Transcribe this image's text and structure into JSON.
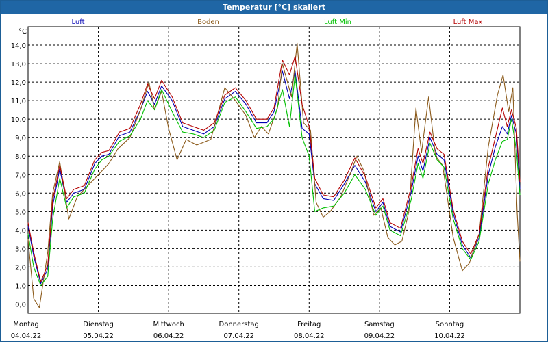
{
  "window": {
    "title": "Temperatur [°C] skaliert"
  },
  "chart_data": {
    "type": "line",
    "title": "Temperatur [°C] skaliert",
    "ylabel": "°C",
    "ylim": [
      -0.5,
      15.0
    ],
    "yticks": [
      0.0,
      1.0,
      2.0,
      3.0,
      4.0,
      5.0,
      6.0,
      7.0,
      8.0,
      9.0,
      10.0,
      11.0,
      12.0,
      13.0,
      14.0
    ],
    "ytick_labels": [
      "0,0",
      "1,0",
      "2,0",
      "3,0",
      "4,0",
      "5,0",
      "6,0",
      "7,0",
      "8,0",
      "9,0",
      "10,0",
      "11,0",
      "12,0",
      "13,0",
      "14,0"
    ],
    "xlim": [
      0,
      7.0
    ],
    "x_ticks": [
      {
        "x": 0,
        "day": "Montag",
        "date": "04.04.22"
      },
      {
        "x": 1,
        "day": "Dienstag",
        "date": "05.04.22"
      },
      {
        "x": 2,
        "day": "Mittwoch",
        "date": "06.04.22"
      },
      {
        "x": 3,
        "day": "Donnerstag",
        "date": "07.04.22"
      },
      {
        "x": 4,
        "day": "Freitag",
        "date": "08.04.22"
      },
      {
        "x": 5,
        "day": "Samstag",
        "date": "09.04.22"
      },
      {
        "x": 6,
        "day": "Sonntag",
        "date": "10.04.22"
      }
    ],
    "grid": true,
    "series": [
      {
        "name": "Luft",
        "color": "#0000b4",
        "points": [
          [
            0,
            4.2
          ],
          [
            0.08,
            2.6
          ],
          [
            0.18,
            1.1
          ],
          [
            0.28,
            1.9
          ],
          [
            0.35,
            5.3
          ],
          [
            0.45,
            7.3
          ],
          [
            0.55,
            5.5
          ],
          [
            0.65,
            6.0
          ],
          [
            0.8,
            6.2
          ],
          [
            0.95,
            7.6
          ],
          [
            1.05,
            8.0
          ],
          [
            1.15,
            8.1
          ],
          [
            1.3,
            9.1
          ],
          [
            1.45,
            9.3
          ],
          [
            1.6,
            10.5
          ],
          [
            1.7,
            11.5
          ],
          [
            1.8,
            10.8
          ],
          [
            1.9,
            11.8
          ],
          [
            2.05,
            11.0
          ],
          [
            2.2,
            9.6
          ],
          [
            2.35,
            9.4
          ],
          [
            2.5,
            9.2
          ],
          [
            2.65,
            9.6
          ],
          [
            2.8,
            11.1
          ],
          [
            2.95,
            11.5
          ],
          [
            3.1,
            10.8
          ],
          [
            3.25,
            9.8
          ],
          [
            3.4,
            9.8
          ],
          [
            3.5,
            10.4
          ],
          [
            3.62,
            12.6
          ],
          [
            3.72,
            11.1
          ],
          [
            3.8,
            12.6
          ],
          [
            3.9,
            9.5
          ],
          [
            4.0,
            9.2
          ],
          [
            4.08,
            6.5
          ],
          [
            4.2,
            5.7
          ],
          [
            4.35,
            5.6
          ],
          [
            4.5,
            6.5
          ],
          [
            4.65,
            7.5
          ],
          [
            4.8,
            6.6
          ],
          [
            4.95,
            5.0
          ],
          [
            5.05,
            5.5
          ],
          [
            5.15,
            4.2
          ],
          [
            5.3,
            3.9
          ],
          [
            5.45,
            6.0
          ],
          [
            5.55,
            8.0
          ],
          [
            5.62,
            7.2
          ],
          [
            5.72,
            9.0
          ],
          [
            5.82,
            8.1
          ],
          [
            5.92,
            7.8
          ],
          [
            6.05,
            4.9
          ],
          [
            6.18,
            3.2
          ],
          [
            6.3,
            2.5
          ],
          [
            6.42,
            3.6
          ],
          [
            6.55,
            7.0
          ],
          [
            6.65,
            8.5
          ],
          [
            6.75,
            9.6
          ],
          [
            6.82,
            9.2
          ],
          [
            6.88,
            10.2
          ],
          [
            6.95,
            9.2
          ],
          [
            7.0,
            6.2
          ]
        ]
      },
      {
        "name": "Boden",
        "color": "#8b5a1a",
        "points": [
          [
            0,
            3.5
          ],
          [
            0.08,
            0.3
          ],
          [
            0.16,
            -0.2
          ],
          [
            0.28,
            2.8
          ],
          [
            0.35,
            6.0
          ],
          [
            0.45,
            7.7
          ],
          [
            0.58,
            4.6
          ],
          [
            0.7,
            5.8
          ],
          [
            0.85,
            6.4
          ],
          [
            0.95,
            6.8
          ],
          [
            1.05,
            7.2
          ],
          [
            1.15,
            7.6
          ],
          [
            1.28,
            8.4
          ],
          [
            1.45,
            9.0
          ],
          [
            1.6,
            10.5
          ],
          [
            1.72,
            12.0
          ],
          [
            1.8,
            10.5
          ],
          [
            1.9,
            11.5
          ],
          [
            2.0,
            9.5
          ],
          [
            2.12,
            7.8
          ],
          [
            2.25,
            8.9
          ],
          [
            2.4,
            8.6
          ],
          [
            2.6,
            8.9
          ],
          [
            2.8,
            11.7
          ],
          [
            2.95,
            11.0
          ],
          [
            3.1,
            10.2
          ],
          [
            3.22,
            9.0
          ],
          [
            3.32,
            9.6
          ],
          [
            3.42,
            9.2
          ],
          [
            3.55,
            10.6
          ],
          [
            3.62,
            13.0
          ],
          [
            3.75,
            11.2
          ],
          [
            3.83,
            14.1
          ],
          [
            3.92,
            9.8
          ],
          [
            4.02,
            9.4
          ],
          [
            4.1,
            5.5
          ],
          [
            4.2,
            4.7
          ],
          [
            4.3,
            5.0
          ],
          [
            4.45,
            5.8
          ],
          [
            4.58,
            7.0
          ],
          [
            4.68,
            8.0
          ],
          [
            4.78,
            7.2
          ],
          [
            4.92,
            4.8
          ],
          [
            5.02,
            5.2
          ],
          [
            5.12,
            3.6
          ],
          [
            5.22,
            3.2
          ],
          [
            5.32,
            3.4
          ],
          [
            5.42,
            5.0
          ],
          [
            5.52,
            10.6
          ],
          [
            5.6,
            8.2
          ],
          [
            5.7,
            11.2
          ],
          [
            5.8,
            8.0
          ],
          [
            5.9,
            7.5
          ],
          [
            6.05,
            3.6
          ],
          [
            6.18,
            1.8
          ],
          [
            6.28,
            2.2
          ],
          [
            6.42,
            3.8
          ],
          [
            6.55,
            8.5
          ],
          [
            6.68,
            11.3
          ],
          [
            6.76,
            12.4
          ],
          [
            6.84,
            10.4
          ],
          [
            6.9,
            11.7
          ],
          [
            6.96,
            5.0
          ],
          [
            7.0,
            2.3
          ]
        ]
      },
      {
        "name": "Luft Min",
        "color": "#00c000",
        "points": [
          [
            0,
            3.8
          ],
          [
            0.08,
            2.0
          ],
          [
            0.18,
            1.0
          ],
          [
            0.28,
            1.5
          ],
          [
            0.35,
            4.6
          ],
          [
            0.45,
            6.8
          ],
          [
            0.55,
            5.2
          ],
          [
            0.65,
            5.8
          ],
          [
            0.8,
            6.0
          ],
          [
            0.95,
            7.3
          ],
          [
            1.05,
            7.8
          ],
          [
            1.15,
            8.0
          ],
          [
            1.3,
            8.8
          ],
          [
            1.45,
            9.1
          ],
          [
            1.6,
            10.0
          ],
          [
            1.7,
            11.0
          ],
          [
            1.8,
            10.5
          ],
          [
            1.9,
            11.6
          ],
          [
            2.05,
            10.4
          ],
          [
            2.2,
            9.3
          ],
          [
            2.35,
            9.2
          ],
          [
            2.5,
            9.0
          ],
          [
            2.65,
            9.4
          ],
          [
            2.8,
            10.9
          ],
          [
            2.95,
            11.2
          ],
          [
            3.1,
            10.4
          ],
          [
            3.25,
            9.5
          ],
          [
            3.4,
            9.6
          ],
          [
            3.5,
            10.0
          ],
          [
            3.62,
            11.6
          ],
          [
            3.72,
            9.6
          ],
          [
            3.8,
            12.4
          ],
          [
            3.9,
            9.0
          ],
          [
            4.0,
            8.0
          ],
          [
            4.08,
            5.0
          ],
          [
            4.2,
            5.2
          ],
          [
            4.35,
            5.3
          ],
          [
            4.5,
            6.0
          ],
          [
            4.65,
            7.0
          ],
          [
            4.8,
            6.2
          ],
          [
            4.95,
            4.8
          ],
          [
            5.05,
            5.3
          ],
          [
            5.15,
            4.0
          ],
          [
            5.3,
            3.7
          ],
          [
            5.45,
            5.6
          ],
          [
            5.55,
            7.6
          ],
          [
            5.62,
            6.8
          ],
          [
            5.72,
            8.7
          ],
          [
            5.82,
            7.8
          ],
          [
            5.92,
            7.4
          ],
          [
            6.05,
            4.6
          ],
          [
            6.18,
            3.0
          ],
          [
            6.3,
            2.4
          ],
          [
            6.42,
            3.4
          ],
          [
            6.55,
            6.5
          ],
          [
            6.65,
            7.8
          ],
          [
            6.75,
            8.8
          ],
          [
            6.82,
            8.9
          ],
          [
            6.88,
            10.0
          ],
          [
            6.95,
            8.3
          ],
          [
            7.0,
            5.9
          ]
        ]
      },
      {
        "name": "Luft Max",
        "color": "#b40000",
        "points": [
          [
            0,
            4.4
          ],
          [
            0.08,
            2.8
          ],
          [
            0.18,
            1.2
          ],
          [
            0.28,
            2.1
          ],
          [
            0.35,
            5.6
          ],
          [
            0.45,
            7.5
          ],
          [
            0.55,
            5.7
          ],
          [
            0.65,
            6.2
          ],
          [
            0.8,
            6.4
          ],
          [
            0.95,
            7.8
          ],
          [
            1.05,
            8.2
          ],
          [
            1.15,
            8.3
          ],
          [
            1.3,
            9.3
          ],
          [
            1.45,
            9.5
          ],
          [
            1.6,
            10.8
          ],
          [
            1.7,
            11.9
          ],
          [
            1.8,
            11.1
          ],
          [
            1.9,
            12.1
          ],
          [
            2.05,
            11.2
          ],
          [
            2.2,
            9.8
          ],
          [
            2.35,
            9.6
          ],
          [
            2.5,
            9.4
          ],
          [
            2.65,
            9.8
          ],
          [
            2.8,
            11.3
          ],
          [
            2.95,
            11.7
          ],
          [
            3.1,
            11.0
          ],
          [
            3.25,
            10.0
          ],
          [
            3.4,
            10.0
          ],
          [
            3.5,
            10.6
          ],
          [
            3.62,
            13.2
          ],
          [
            3.72,
            12.4
          ],
          [
            3.8,
            13.4
          ],
          [
            3.9,
            10.8
          ],
          [
            4.0,
            9.6
          ],
          [
            4.08,
            6.8
          ],
          [
            4.2,
            5.9
          ],
          [
            4.35,
            5.8
          ],
          [
            4.5,
            6.7
          ],
          [
            4.65,
            7.9
          ],
          [
            4.8,
            6.9
          ],
          [
            4.95,
            5.2
          ],
          [
            5.05,
            5.7
          ],
          [
            5.15,
            4.4
          ],
          [
            5.3,
            4.1
          ],
          [
            5.45,
            6.3
          ],
          [
            5.55,
            8.4
          ],
          [
            5.62,
            7.6
          ],
          [
            5.72,
            9.3
          ],
          [
            5.82,
            8.4
          ],
          [
            5.92,
            8.1
          ],
          [
            6.05,
            5.1
          ],
          [
            6.18,
            3.4
          ],
          [
            6.3,
            2.7
          ],
          [
            6.42,
            3.8
          ],
          [
            6.55,
            7.4
          ],
          [
            6.65,
            9.0
          ],
          [
            6.75,
            10.6
          ],
          [
            6.82,
            9.6
          ],
          [
            6.88,
            10.5
          ],
          [
            6.95,
            9.5
          ],
          [
            7.0,
            6.6
          ]
        ]
      }
    ]
  }
}
